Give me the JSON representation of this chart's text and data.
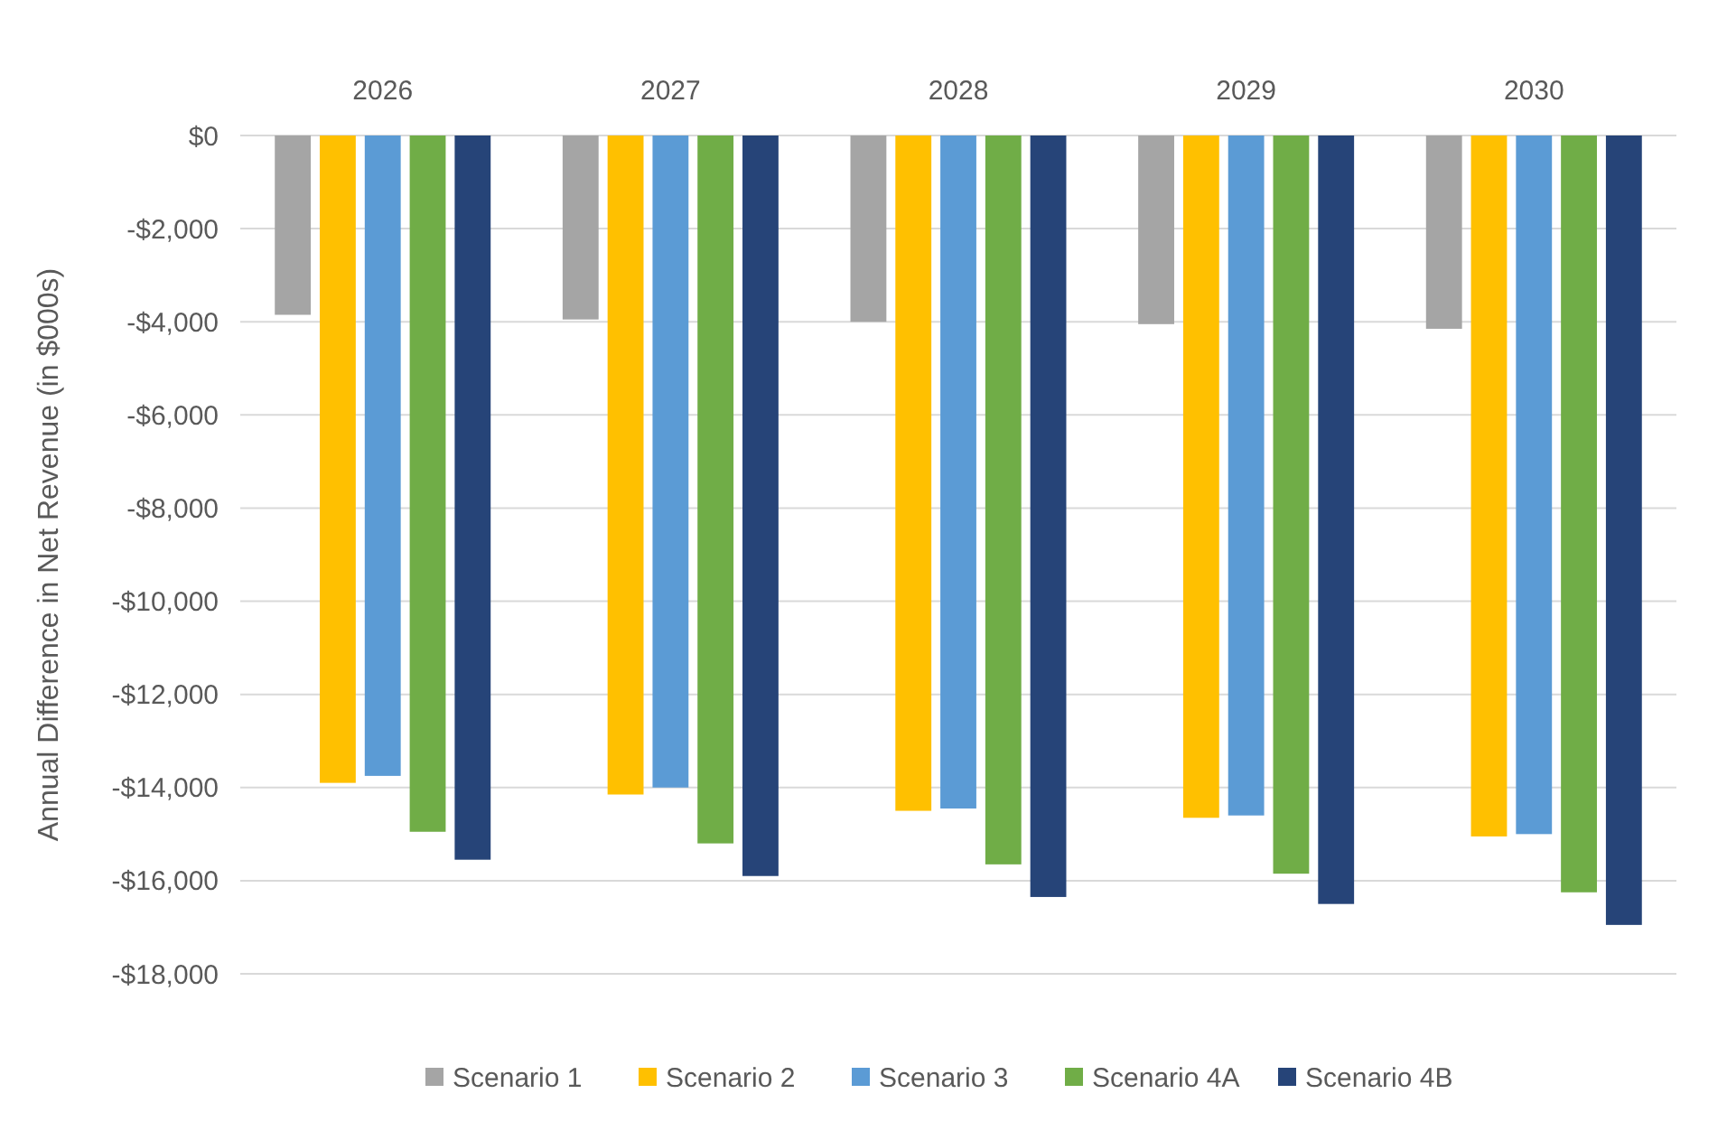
{
  "chart_data": {
    "type": "bar",
    "ylabel": "Annual Difference in Net Revenue  (in $000s)",
    "categories": [
      "2026",
      "2027",
      "2028",
      "2029",
      "2030"
    ],
    "series": [
      {
        "name": "Scenario 1",
        "color": "#a5a5a5",
        "values": [
          -3850,
          -3950,
          -4000,
          -4050,
          -4150
        ]
      },
      {
        "name": "Scenario 2",
        "color": "#ffc000",
        "values": [
          -13900,
          -14150,
          -14500,
          -14650,
          -15050
        ]
      },
      {
        "name": "Scenario 3",
        "color": "#5b9bd5",
        "values": [
          -13750,
          -14000,
          -14450,
          -14600,
          -15000
        ]
      },
      {
        "name": "Scenario 4A",
        "color": "#70ad47",
        "values": [
          -14950,
          -15200,
          -15650,
          -15850,
          -16250
        ]
      },
      {
        "name": "Scenario 4B",
        "color": "#264478",
        "values": [
          -15550,
          -15900,
          -16350,
          -16500,
          -16950
        ]
      }
    ],
    "ylim": [
      -18000,
      0
    ],
    "yticks": [
      {
        "value": 0,
        "label": "$0"
      },
      {
        "value": -2000,
        "label": "-$2,000"
      },
      {
        "value": -4000,
        "label": "-$4,000"
      },
      {
        "value": -6000,
        "label": "-$6,000"
      },
      {
        "value": -8000,
        "label": "-$8,000"
      },
      {
        "value": -10000,
        "label": "-$10,000"
      },
      {
        "value": -12000,
        "label": "-$12,000"
      },
      {
        "value": -14000,
        "label": "-$14,000"
      },
      {
        "value": -16000,
        "label": "-$16,000"
      },
      {
        "value": -18000,
        "label": "-$18,000"
      }
    ],
    "grid": "y",
    "legend": "bottom"
  }
}
